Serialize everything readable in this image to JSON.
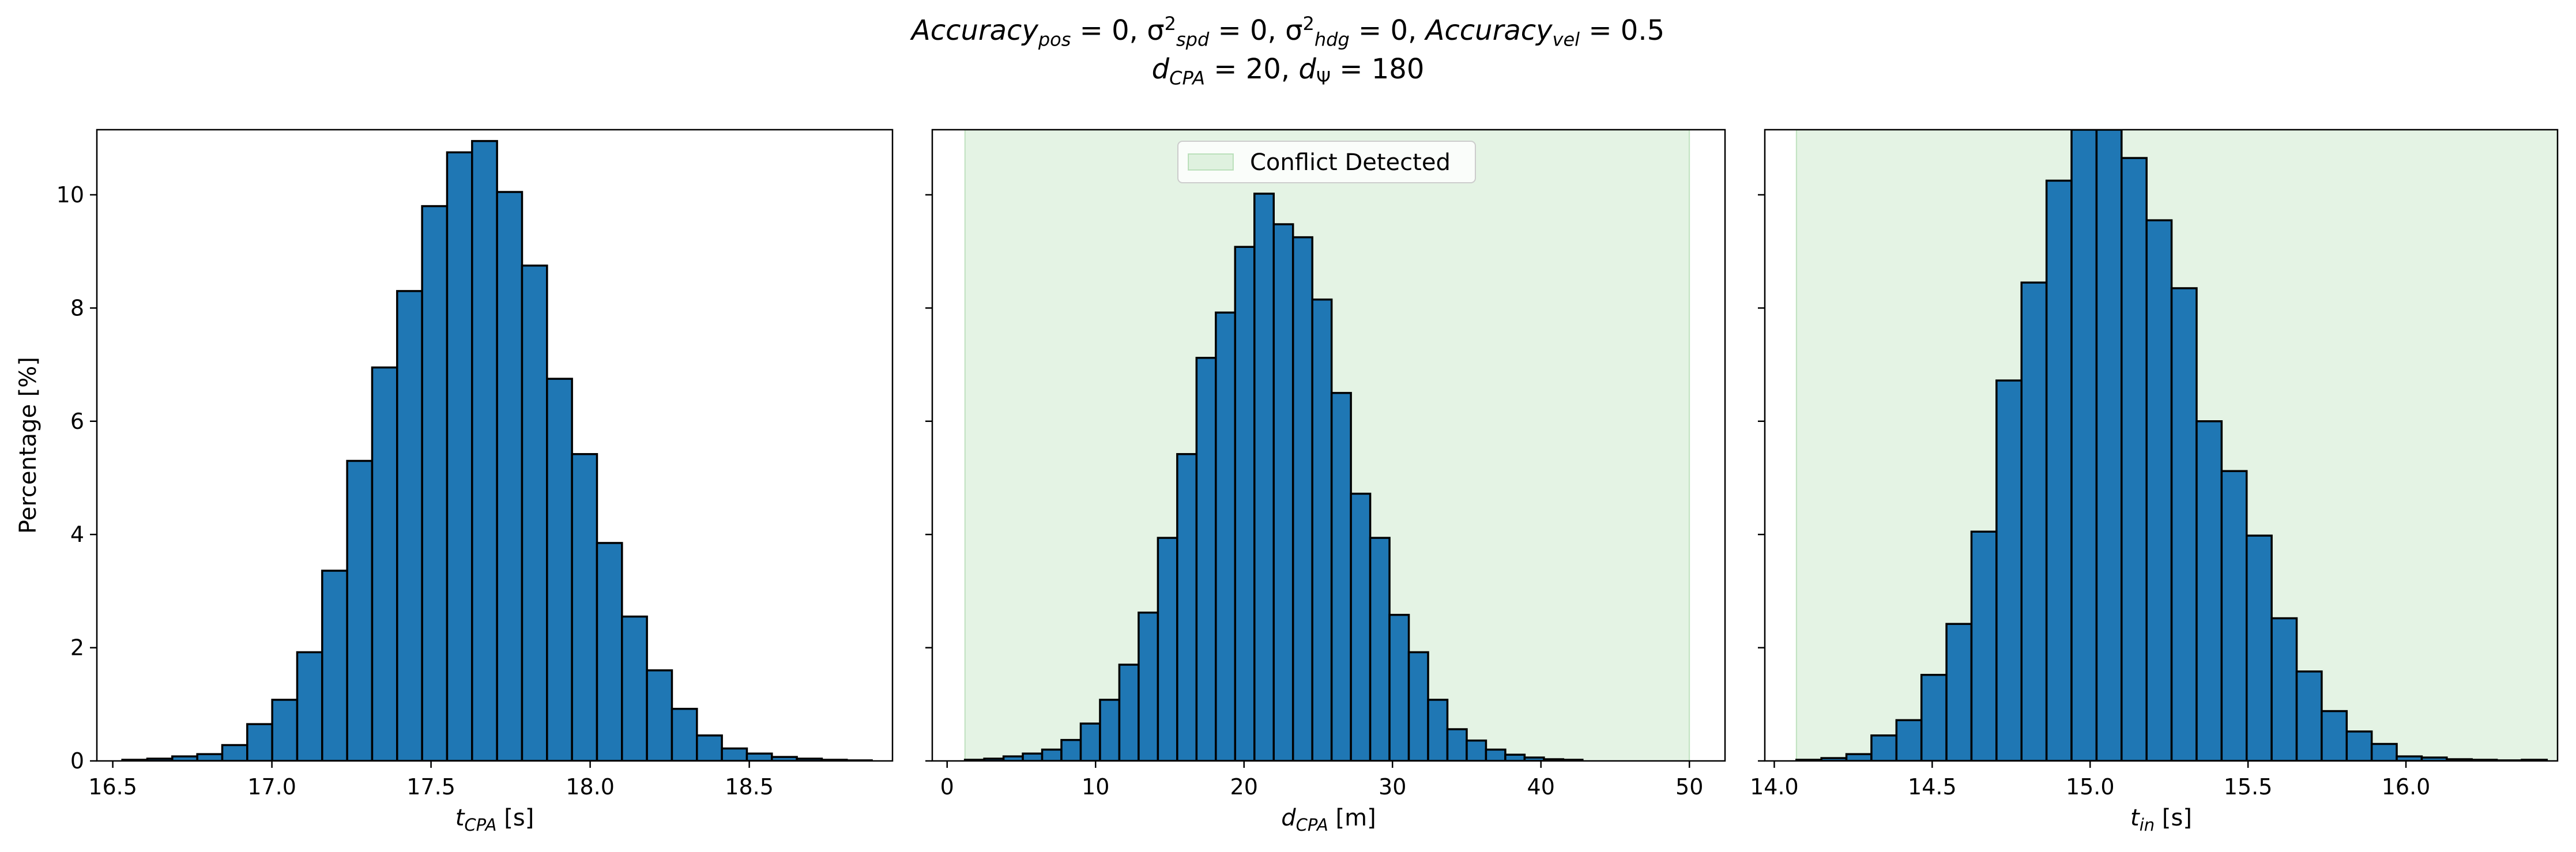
{
  "figure": {
    "title_line1": {
      "parts": [
        {
          "t": "Accuracy",
          "i": true
        },
        {
          "t": "pos",
          "sub": true,
          "i": true
        },
        {
          "t": " = 0, "
        },
        {
          "t": "σ"
        },
        {
          "t": "2",
          "sup": true
        },
        {
          "t": "spd",
          "sub": true,
          "i": true
        },
        {
          "t": " = 0, "
        },
        {
          "t": "σ"
        },
        {
          "t": "2",
          "sup": true
        },
        {
          "t": "hdg",
          "sub": true,
          "i": true
        },
        {
          "t": " = 0, "
        },
        {
          "t": "Accuracy",
          "i": true
        },
        {
          "t": "vel",
          "sub": true,
          "i": true
        },
        {
          "t": " = 0.5"
        }
      ]
    },
    "title_line2": {
      "parts": [
        {
          "t": "d",
          "i": true
        },
        {
          "t": "CPA",
          "sub": true,
          "i": true
        },
        {
          "t": " = 20, "
        },
        {
          "t": "d",
          "i": true
        },
        {
          "t": "Ψ",
          "sub": true
        },
        {
          "t": " = 180"
        }
      ]
    },
    "ylabel": "Percentage [%]",
    "bar_color": "#1f77b4",
    "edge_color": "#000000",
    "region_color": "#2ca02c",
    "legend_label": "Conflict Detected"
  },
  "chart_data": [
    {
      "type": "bar",
      "xlabel": {
        "main": "t",
        "sub": "CPA",
        "unit": " [s]"
      },
      "ylabel": "Percentage [%]",
      "xlim": [
        16.45,
        18.95
      ],
      "ylim": [
        0,
        11.15
      ],
      "xticks": [
        16.5,
        17.0,
        17.5,
        18.0,
        18.5
      ],
      "xtick_labels": [
        "16.5",
        "17.0",
        "17.5",
        "18.0",
        "18.5"
      ],
      "yticks": [
        0,
        2,
        4,
        6,
        8,
        10
      ],
      "ytick_labels": [
        "0",
        "2",
        "4",
        "6",
        "8",
        "10"
      ],
      "bin_start": 16.53,
      "bin_width": 0.0785,
      "values": [
        0.02,
        0.04,
        0.08,
        0.12,
        0.28,
        0.65,
        1.08,
        1.92,
        3.36,
        5.3,
        6.95,
        8.3,
        9.8,
        10.75,
        10.95,
        10.05,
        8.75,
        6.75,
        5.42,
        3.85,
        2.55,
        1.6,
        0.92,
        0.45,
        0.22,
        0.13,
        0.07,
        0.04,
        0.02,
        0.01
      ]
    },
    {
      "type": "bar",
      "xlabel": {
        "main": "d",
        "sub": "CPA",
        "unit": " [m]"
      },
      "xlim": [
        -1.0,
        52.4
      ],
      "ylim": [
        0,
        11.15
      ],
      "xticks": [
        0,
        10,
        20,
        30,
        40,
        50
      ],
      "xtick_labels": [
        "0",
        "10",
        "20",
        "30",
        "40",
        "50"
      ],
      "yticks": [
        0,
        2,
        4,
        6,
        8,
        10
      ],
      "shaded_region": [
        1.2,
        50.0
      ],
      "legend": {
        "label": "Conflict Detected",
        "placement": "top-center"
      },
      "bin_start": 1.2,
      "bin_width": 1.3,
      "values": [
        0.02,
        0.04,
        0.08,
        0.13,
        0.2,
        0.37,
        0.66,
        1.08,
        1.7,
        2.62,
        3.94,
        5.42,
        7.12,
        7.92,
        9.08,
        10.02,
        9.48,
        9.25,
        8.15,
        6.5,
        4.72,
        3.94,
        2.58,
        1.92,
        1.08,
        0.56,
        0.36,
        0.2,
        0.11,
        0.06,
        0.03,
        0.02
      ]
    },
    {
      "type": "bar",
      "xlabel": {
        "main": "t",
        "sub": "in",
        "unit": " [s]"
      },
      "xlim": [
        13.97,
        16.48
      ],
      "ylim": [
        0,
        11.15
      ],
      "xticks": [
        14.0,
        14.5,
        15.0,
        15.5,
        16.0
      ],
      "xtick_labels": [
        "14.0",
        "14.5",
        "15.0",
        "15.5",
        "16.0"
      ],
      "yticks": [
        0,
        2,
        4,
        6,
        8,
        10
      ],
      "shaded_region": [
        14.07,
        16.48
      ],
      "bin_start": 14.07,
      "bin_width": 0.0792,
      "values": [
        0.02,
        0.05,
        0.12,
        0.45,
        0.72,
        1.52,
        2.42,
        4.05,
        6.72,
        8.45,
        10.25,
        11.15,
        11.15,
        10.65,
        9.55,
        8.35,
        6.0,
        5.12,
        3.98,
        2.52,
        1.58,
        0.88,
        0.52,
        0.3,
        0.08,
        0.06,
        0.03,
        0.02,
        0.01,
        0.02
      ]
    }
  ]
}
